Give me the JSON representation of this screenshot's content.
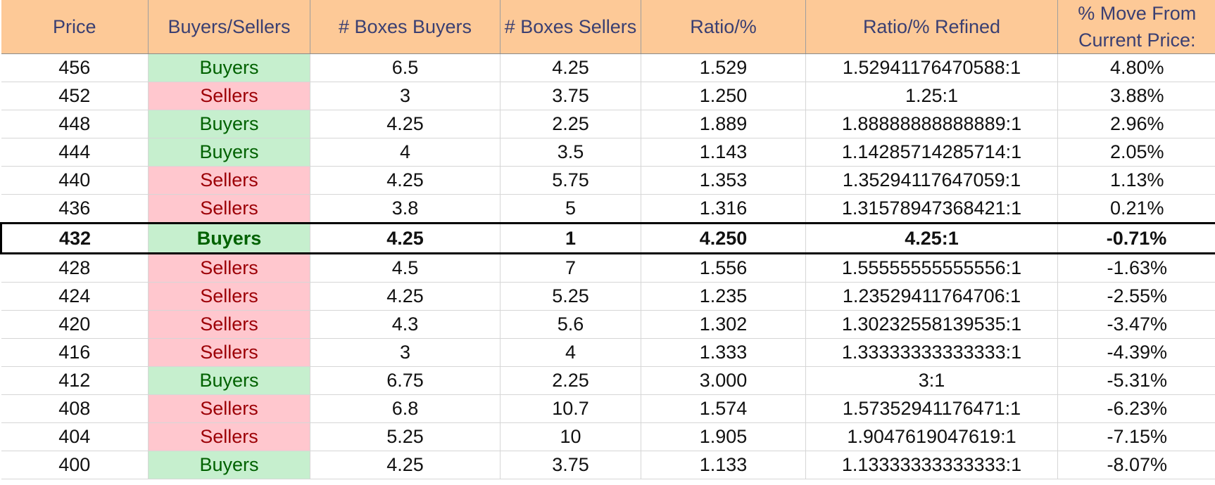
{
  "headers": [
    "Price",
    "Buyers/Sellers",
    "# Boxes Buyers",
    "# Boxes Sellers",
    "Ratio/%",
    "Ratio/% Refined",
    "% Move From Current Price:"
  ],
  "colors": {
    "header_bg": "#fdc997",
    "buyers_bg": "#c6efce",
    "buyers_text": "#006100",
    "sellers_bg": "#ffc7ce",
    "sellers_text": "#9c0006"
  },
  "current_price_row_index": 6,
  "rows": [
    {
      "price": "456",
      "side": "Buyers",
      "boxes_buyers": "6.5",
      "boxes_sellers": "4.25",
      "ratio": "1.529",
      "ratio_refined": "1.52941176470588:1",
      "move": "4.80%"
    },
    {
      "price": "452",
      "side": "Sellers",
      "boxes_buyers": "3",
      "boxes_sellers": "3.75",
      "ratio": "1.250",
      "ratio_refined": "1.25:1",
      "move": "3.88%"
    },
    {
      "price": "448",
      "side": "Buyers",
      "boxes_buyers": "4.25",
      "boxes_sellers": "2.25",
      "ratio": "1.889",
      "ratio_refined": "1.88888888888889:1",
      "move": "2.96%"
    },
    {
      "price": "444",
      "side": "Buyers",
      "boxes_buyers": "4",
      "boxes_sellers": "3.5",
      "ratio": "1.143",
      "ratio_refined": "1.14285714285714:1",
      "move": "2.05%"
    },
    {
      "price": "440",
      "side": "Sellers",
      "boxes_buyers": "4.25",
      "boxes_sellers": "5.75",
      "ratio": "1.353",
      "ratio_refined": "1.35294117647059:1",
      "move": "1.13%"
    },
    {
      "price": "436",
      "side": "Sellers",
      "boxes_buyers": "3.8",
      "boxes_sellers": "5",
      "ratio": "1.316",
      "ratio_refined": "1.31578947368421:1",
      "move": "0.21%"
    },
    {
      "price": "432",
      "side": "Buyers",
      "boxes_buyers": "4.25",
      "boxes_sellers": "1",
      "ratio": "4.250",
      "ratio_refined": "4.25:1",
      "move": "-0.71%"
    },
    {
      "price": "428",
      "side": "Sellers",
      "boxes_buyers": "4.5",
      "boxes_sellers": "7",
      "ratio": "1.556",
      "ratio_refined": "1.55555555555556:1",
      "move": "-1.63%"
    },
    {
      "price": "424",
      "side": "Sellers",
      "boxes_buyers": "4.25",
      "boxes_sellers": "5.25",
      "ratio": "1.235",
      "ratio_refined": "1.23529411764706:1",
      "move": "-2.55%"
    },
    {
      "price": "420",
      "side": "Sellers",
      "boxes_buyers": "4.3",
      "boxes_sellers": "5.6",
      "ratio": "1.302",
      "ratio_refined": "1.30232558139535:1",
      "move": "-3.47%"
    },
    {
      "price": "416",
      "side": "Sellers",
      "boxes_buyers": "3",
      "boxes_sellers": "4",
      "ratio": "1.333",
      "ratio_refined": "1.33333333333333:1",
      "move": "-4.39%"
    },
    {
      "price": "412",
      "side": "Buyers",
      "boxes_buyers": "6.75",
      "boxes_sellers": "2.25",
      "ratio": "3.000",
      "ratio_refined": "3:1",
      "move": "-5.31%"
    },
    {
      "price": "408",
      "side": "Sellers",
      "boxes_buyers": "6.8",
      "boxes_sellers": "10.7",
      "ratio": "1.574",
      "ratio_refined": "1.57352941176471:1",
      "move": "-6.23%"
    },
    {
      "price": "404",
      "side": "Sellers",
      "boxes_buyers": "5.25",
      "boxes_sellers": "10",
      "ratio": "1.905",
      "ratio_refined": "1.9047619047619:1",
      "move": "-7.15%"
    },
    {
      "price": "400",
      "side": "Buyers",
      "boxes_buyers": "4.25",
      "boxes_sellers": "3.75",
      "ratio": "1.133",
      "ratio_refined": "1.13333333333333:1",
      "move": "-8.07%"
    }
  ]
}
